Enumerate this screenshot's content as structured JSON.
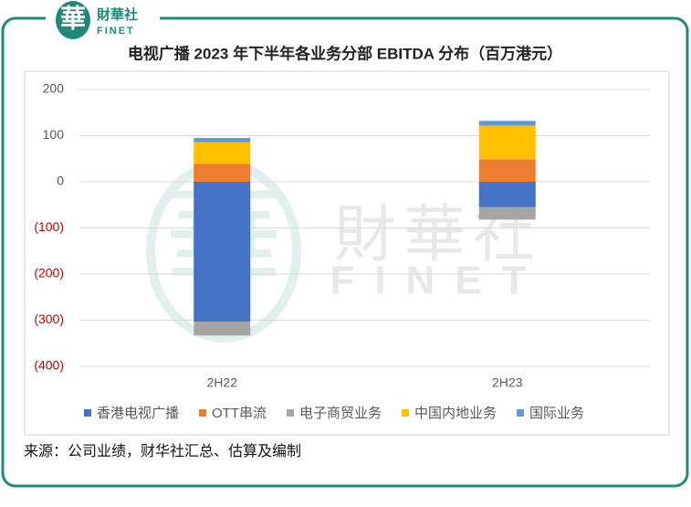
{
  "logo": {
    "mark": "華",
    "name": "財華社",
    "sub": "FINET"
  },
  "watermark": {
    "mark": "華",
    "name": "財華社",
    "sub": "FINET"
  },
  "chart_data": {
    "type": "bar",
    "stacked": true,
    "title": "电视广播 2023 年下半年各业务分部 EBITDA 分布（百万港元）",
    "categories": [
      "2H22",
      "2H23"
    ],
    "series": [
      {
        "name": "香港电视广播",
        "color": "#4472c4",
        "values": [
          -303,
          -55
        ]
      },
      {
        "name": "OTT串流",
        "color": "#ed7d31",
        "values": [
          39,
          49
        ]
      },
      {
        "name": "电子商贸业务",
        "color": "#a5a5a5",
        "values": [
          -30,
          -27
        ]
      },
      {
        "name": "中国内地业务",
        "color": "#ffc000",
        "values": [
          47,
          73
        ]
      },
      {
        "name": "国际业务",
        "color": "#5b9bd5",
        "values": [
          9,
          10
        ]
      }
    ],
    "ylim": [
      -400,
      200
    ],
    "yticks": [
      {
        "value": -400,
        "label": "(400)"
      },
      {
        "value": -300,
        "label": "(300)"
      },
      {
        "value": -200,
        "label": "(200)"
      },
      {
        "value": -100,
        "label": "(100)"
      },
      0,
      100,
      200
    ],
    "negative_tick_color": "#c00000",
    "grid": true,
    "legend": "bottom"
  },
  "source": "来源：公司业绩，财华社汇总、估算及编制"
}
